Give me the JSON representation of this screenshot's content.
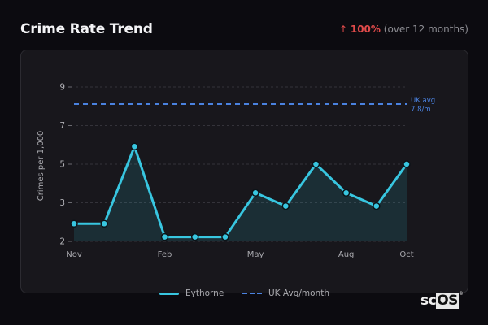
{
  "header": {
    "title": "Crime Rate Trend",
    "change_arrow": "↑",
    "change_pct": "100%",
    "change_note": "(over 12 months)"
  },
  "legend": {
    "series_label": "Eythorne",
    "avg_label": "UK Avg/month"
  },
  "avg_annotation": {
    "line1": "UK avg",
    "line2": "7.8/m"
  },
  "brand": {
    "text_a": "sc",
    "text_b": "OS",
    "mark": "®"
  },
  "colors": {
    "series": "#38c6e0",
    "avg": "#4a82e0",
    "negative": "#e04a4a"
  },
  "chart_data": {
    "type": "area",
    "title": "Crime Rate Trend",
    "xlabel": "",
    "ylabel": "Crimes per 1,000",
    "x": [
      "Nov",
      "Dec",
      "Jan",
      "Feb",
      "Mar",
      "Apr",
      "May",
      "Jun",
      "Jul",
      "Aug",
      "Sep",
      "Oct"
    ],
    "x_tick_labels": [
      "Nov",
      "Feb",
      "May",
      "Aug",
      "Oct"
    ],
    "y_tick_labels": [
      "2",
      "3",
      "5",
      "7",
      "9"
    ],
    "ylim": [
      2,
      9
    ],
    "grid": true,
    "legend_position": "bottom",
    "series": [
      {
        "name": "Eythorne",
        "values": [
          2.8,
          2.8,
          6.3,
          2.2,
          2.2,
          2.2,
          4.2,
          3.6,
          5.5,
          4.2,
          3.6,
          5.5
        ]
      },
      {
        "name": "UK Avg/month",
        "values": [
          7.8,
          7.8,
          7.8,
          7.8,
          7.8,
          7.8,
          7.8,
          7.8,
          7.8,
          7.8,
          7.8,
          7.8
        ],
        "style": "dashed"
      }
    ],
    "annotations": [
      "UK avg 7.8/m"
    ]
  }
}
